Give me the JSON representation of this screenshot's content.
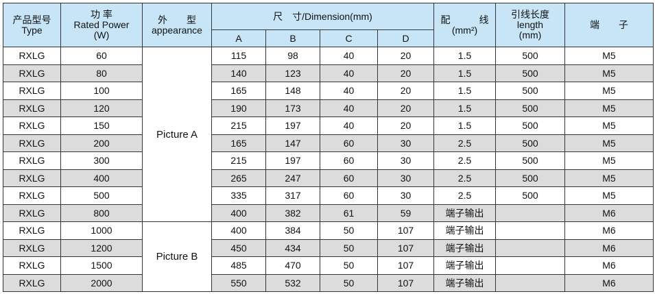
{
  "header": {
    "type": [
      "产品型号",
      "Type"
    ],
    "power": [
      "功 率",
      "Rated Power",
      "(W)"
    ],
    "appearance": [
      "外　　型",
      "appearance"
    ],
    "dimension": "尺　寸/Dimension(mm)",
    "dims": [
      "A",
      "B",
      "C",
      "D"
    ],
    "wire": [
      "配　　　线",
      "(mm²)"
    ],
    "length": [
      "引线长度",
      "length",
      "(mm)"
    ],
    "terminal": "端　　子"
  },
  "appearance_groups": [
    "Picture A",
    "Picture B"
  ],
  "rows": [
    [
      "RXLG",
      "60",
      "115",
      "98",
      "40",
      "20",
      "1.5",
      "500",
      "M5"
    ],
    [
      "RXLG",
      "80",
      "140",
      "123",
      "40",
      "20",
      "1.5",
      "500",
      "M5"
    ],
    [
      "RXLG",
      "100",
      "165",
      "148",
      "40",
      "20",
      "1.5",
      "500",
      "M5"
    ],
    [
      "RXLG",
      "120",
      "190",
      "173",
      "40",
      "20",
      "1.5",
      "500",
      "M5"
    ],
    [
      "RXLG",
      "150",
      "215",
      "197",
      "40",
      "20",
      "1.5",
      "500",
      "M5"
    ],
    [
      "RXLG",
      "200",
      "165",
      "147",
      "60",
      "30",
      "2.5",
      "500",
      "M5"
    ],
    [
      "RXLG",
      "300",
      "215",
      "197",
      "60",
      "30",
      "2.5",
      "500",
      "M5"
    ],
    [
      "RXLG",
      "400",
      "265",
      "247",
      "60",
      "30",
      "2.5",
      "500",
      "M5"
    ],
    [
      "RXLG",
      "500",
      "335",
      "317",
      "60",
      "30",
      "2.5",
      "500",
      "M5"
    ],
    [
      "RXLG",
      "800",
      "400",
      "382",
      "61",
      "59",
      "端子输出",
      "",
      "M6"
    ],
    [
      "RXLG",
      "1000",
      "400",
      "384",
      "50",
      "107",
      "端子输出",
      "",
      "M6"
    ],
    [
      "RXLG",
      "1200",
      "450",
      "434",
      "50",
      "107",
      "端子输出",
      "",
      "M6"
    ],
    [
      "RXLG",
      "1500",
      "485",
      "470",
      "50",
      "107",
      "端子输出",
      "",
      "M6"
    ],
    [
      "RXLG",
      "2000",
      "550",
      "532",
      "50",
      "107",
      "端子输出",
      "",
      "M6"
    ]
  ],
  "colors": {
    "header_bg": "#c7e5f6",
    "alt_row_bg": "#dcdcdc"
  }
}
